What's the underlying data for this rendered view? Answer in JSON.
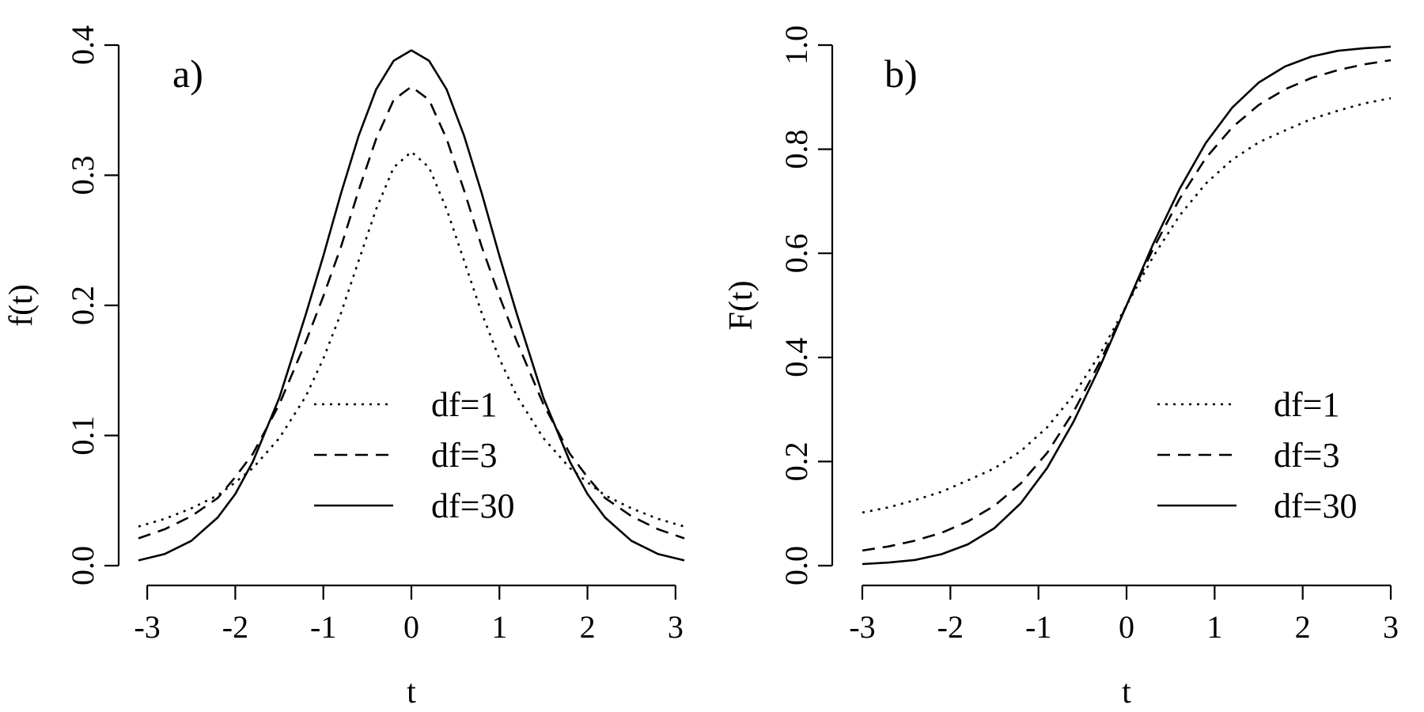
{
  "figure": {
    "line_color": "#000000",
    "background": "#ffffff"
  },
  "chart_data": [
    {
      "type": "line",
      "panel_label": "a)",
      "title": "",
      "xlabel": "t",
      "ylabel": "f(t)",
      "xlim": [
        -3.1,
        3.1
      ],
      "ylim": [
        0.0,
        0.4
      ],
      "xticks": [
        -3,
        -2,
        -1,
        0,
        1,
        2,
        3
      ],
      "xtick_labels": [
        "-3",
        "-2",
        "-1",
        "0",
        "1",
        "2",
        "3"
      ],
      "yticks": [
        0.0,
        0.1,
        0.2,
        0.3,
        0.4
      ],
      "ytick_labels": [
        "0.0",
        "0.1",
        "0.2",
        "0.3",
        "0.4"
      ],
      "grid": false,
      "legend_position": "center-right",
      "x": [
        -3.1,
        -2.8,
        -2.5,
        -2.2,
        -2.0,
        -1.8,
        -1.5,
        -1.2,
        -1.0,
        -0.8,
        -0.6,
        -0.4,
        -0.2,
        0.0,
        0.2,
        0.4,
        0.6,
        0.8,
        1.0,
        1.2,
        1.5,
        1.8,
        2.0,
        2.2,
        2.5,
        2.8,
        3.1
      ],
      "series": [
        {
          "name": "df=1",
          "line_style": "dotted",
          "values": [
            0.03,
            0.036,
            0.044,
            0.054,
            0.064,
            0.075,
            0.098,
            0.13,
            0.159,
            0.194,
            0.234,
            0.274,
            0.306,
            0.318,
            0.306,
            0.274,
            0.234,
            0.194,
            0.159,
            0.13,
            0.098,
            0.075,
            0.064,
            0.054,
            0.044,
            0.036,
            0.03
          ]
        },
        {
          "name": "df=3",
          "line_style": "dashed",
          "values": [
            0.021,
            0.028,
            0.038,
            0.052,
            0.068,
            0.086,
            0.124,
            0.172,
            0.207,
            0.245,
            0.288,
            0.328,
            0.358,
            0.368,
            0.358,
            0.328,
            0.288,
            0.245,
            0.207,
            0.172,
            0.124,
            0.086,
            0.068,
            0.052,
            0.038,
            0.028,
            0.021
          ]
        },
        {
          "name": "df=30",
          "line_style": "solid",
          "values": [
            0.004,
            0.009,
            0.019,
            0.037,
            0.055,
            0.08,
            0.129,
            0.193,
            0.238,
            0.286,
            0.33,
            0.366,
            0.388,
            0.396,
            0.388,
            0.366,
            0.33,
            0.286,
            0.238,
            0.193,
            0.129,
            0.08,
            0.055,
            0.037,
            0.019,
            0.009,
            0.004
          ]
        }
      ]
    },
    {
      "type": "line",
      "panel_label": "b)",
      "title": "",
      "xlabel": "t",
      "ylabel": "F(t)",
      "xlim": [
        -3.0,
        3.0
      ],
      "ylim": [
        0.0,
        1.0
      ],
      "xticks": [
        -3,
        -2,
        -1,
        0,
        1,
        2,
        3
      ],
      "xtick_labels": [
        "-3",
        "-2",
        "-1",
        "0",
        "1",
        "2",
        "3"
      ],
      "yticks": [
        0.0,
        0.2,
        0.4,
        0.6,
        0.8,
        1.0
      ],
      "ytick_labels": [
        "0.0",
        "0.2",
        "0.4",
        "0.6",
        "0.8",
        "1.0"
      ],
      "grid": false,
      "legend_position": "bottom-right",
      "x": [
        -3.0,
        -2.7,
        -2.4,
        -2.1,
        -1.8,
        -1.5,
        -1.2,
        -0.9,
        -0.6,
        -0.3,
        0.0,
        0.3,
        0.6,
        0.9,
        1.2,
        1.5,
        1.8,
        2.1,
        2.4,
        2.7,
        3.0
      ],
      "series": [
        {
          "name": "df=1",
          "line_style": "dotted",
          "values": [
            0.102,
            0.112,
            0.126,
            0.142,
            0.164,
            0.187,
            0.22,
            0.266,
            0.328,
            0.407,
            0.5,
            0.593,
            0.672,
            0.734,
            0.78,
            0.813,
            0.836,
            0.858,
            0.874,
            0.888,
            0.898
          ]
        },
        {
          "name": "df=3",
          "line_style": "dashed",
          "values": [
            0.029,
            0.037,
            0.048,
            0.063,
            0.085,
            0.115,
            0.158,
            0.217,
            0.296,
            0.392,
            0.5,
            0.608,
            0.704,
            0.783,
            0.842,
            0.885,
            0.915,
            0.937,
            0.952,
            0.963,
            0.971
          ]
        },
        {
          "name": "df=30",
          "line_style": "solid",
          "values": [
            0.003,
            0.006,
            0.011,
            0.022,
            0.041,
            0.072,
            0.12,
            0.188,
            0.277,
            0.383,
            0.5,
            0.617,
            0.723,
            0.812,
            0.88,
            0.928,
            0.959,
            0.978,
            0.989,
            0.994,
            0.997
          ]
        }
      ]
    }
  ]
}
